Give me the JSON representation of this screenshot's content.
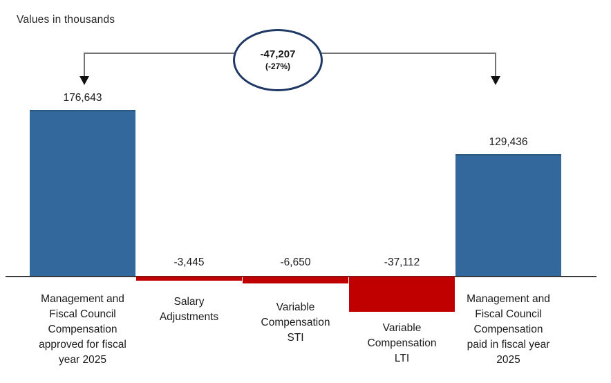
{
  "title": "Values in thousands",
  "annotation": {
    "value": "-47,207",
    "percent": "(-27%)"
  },
  "colors": {
    "positive_bar": "#32689B",
    "negative_bar": "#C00000",
    "ellipse_border": "#203864",
    "bracket_line": "#737373",
    "axis_line": "#3a3a3a",
    "text": "#1a1a1a"
  },
  "chart_data": {
    "type": "bar",
    "subtype": "waterfall",
    "title": "Values in thousands",
    "unit": "thousands",
    "categories": [
      "Management and\nFiscal Council\nCompensation\napproved for fiscal\nyear 2025",
      "Salary\nAdjustments",
      "Variable\nCompensation\nSTI",
      "Variable\nCompensation\nLTI",
      "Management and\nFiscal Council\nCompensation\npaid in fiscal year\n2025"
    ],
    "values": [
      176643,
      -3445,
      -6650,
      -37112,
      129436
    ],
    "value_labels": [
      "176,643",
      "-3,445",
      "-6,650",
      "-37,112",
      "129,436"
    ],
    "bar_colors": [
      "#32689B",
      "#C00000",
      "#C00000",
      "#C00000",
      "#32689B"
    ],
    "annotation": {
      "text": "-47,207",
      "subtext": "(-27%)"
    },
    "layout": {
      "y_axis_visible": false,
      "gridlines": false,
      "legend": "none",
      "value_labels_position": "outside-end",
      "negative_bars_hang_below_axis": true
    }
  }
}
